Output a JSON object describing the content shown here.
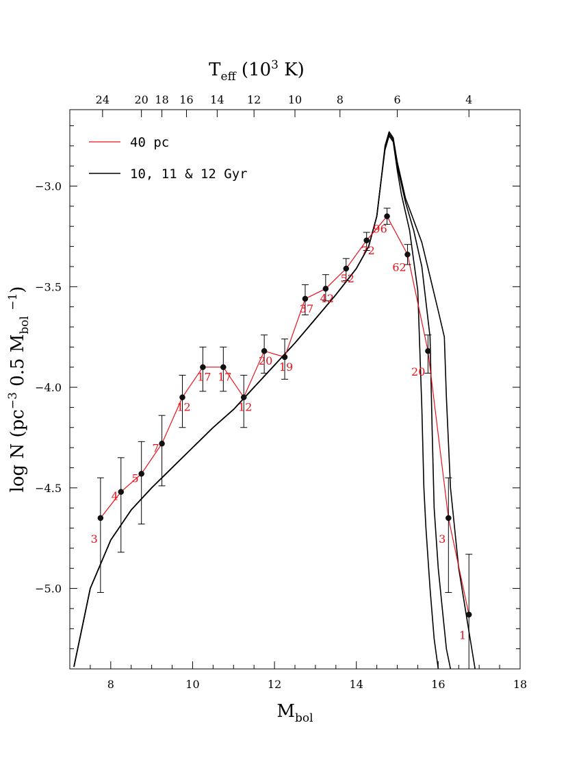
{
  "chart_data": {
    "type": "line",
    "xlabel": "M",
    "xlabel_sub": "bol",
    "ylabel_parts": [
      "log N (pc",
      "−3",
      " 0.5 M",
      "bol",
      " ",
      "−1",
      ")"
    ],
    "toplabel_parts": [
      "T",
      "eff",
      " (10",
      "3",
      " K)"
    ],
    "xlim": [
      7,
      18
    ],
    "ylim": [
      -5.4,
      -2.62
    ],
    "x_ticks": [
      8,
      10,
      12,
      14,
      16,
      18
    ],
    "x_tick_labels": [
      "8",
      "10",
      "12",
      "14",
      "16",
      "18"
    ],
    "y_ticks": [
      -5.0,
      -4.5,
      -4.0,
      -3.5,
      -3.0
    ],
    "y_tick_labels": [
      "−5.0",
      "−4.5",
      "−4.0",
      "−3.5",
      "−3.0"
    ],
    "top_ticks": [
      {
        "x": 7.8,
        "label": "24"
      },
      {
        "x": 8.75,
        "label": "20"
      },
      {
        "x": 9.25,
        "label": "18"
      },
      {
        "x": 9.85,
        "label": "16"
      },
      {
        "x": 10.6,
        "label": "14"
      },
      {
        "x": 11.5,
        "label": "12"
      },
      {
        "x": 12.5,
        "label": "10"
      },
      {
        "x": 13.6,
        "label": "8"
      },
      {
        "x": 15.0,
        "label": "6"
      },
      {
        "x": 16.75,
        "label": "4"
      }
    ],
    "legend": [
      {
        "label": "40 pc",
        "color": "#e8101a"
      },
      {
        "label": "10, 11 & 12 Gyr",
        "color": "#000000"
      }
    ],
    "series": [
      {
        "name": "40 pc",
        "color": "#e8101a",
        "points": [
          {
            "x": 7.75,
            "y": -4.65,
            "lo": -5.02,
            "hi": -4.45,
            "label": "3"
          },
          {
            "x": 8.25,
            "y": -4.52,
            "lo": -4.82,
            "hi": -4.35,
            "label": "4"
          },
          {
            "x": 8.75,
            "y": -4.43,
            "lo": -4.68,
            "hi": -4.27,
            "label": "5"
          },
          {
            "x": 9.25,
            "y": -4.28,
            "lo": -4.49,
            "hi": -4.14,
            "label": "7"
          },
          {
            "x": 9.75,
            "y": -4.05,
            "lo": -4.2,
            "hi": -3.94,
            "label": "12"
          },
          {
            "x": 10.25,
            "y": -3.9,
            "lo": -4.02,
            "hi": -3.8,
            "label": "17"
          },
          {
            "x": 10.75,
            "y": -3.9,
            "lo": -4.02,
            "hi": -3.8,
            "label": "17"
          },
          {
            "x": 11.25,
            "y": -4.05,
            "lo": -4.2,
            "hi": -3.94,
            "label": "12"
          },
          {
            "x": 11.75,
            "y": -3.82,
            "lo": -3.93,
            "hi": -3.74,
            "label": "20"
          },
          {
            "x": 12.25,
            "y": -3.85,
            "lo": -3.96,
            "hi": -3.76,
            "label": "19"
          },
          {
            "x": 12.75,
            "y": -3.56,
            "lo": -3.64,
            "hi": -3.49,
            "label": "37"
          },
          {
            "x": 13.25,
            "y": -3.51,
            "lo": -3.57,
            "hi": -3.44,
            "label": "42"
          },
          {
            "x": 13.75,
            "y": -3.41,
            "lo": -3.47,
            "hi": -3.36,
            "label": "52"
          },
          {
            "x": 14.25,
            "y": -3.27,
            "lo": -3.32,
            "hi": -3.23,
            "label": "72"
          },
          {
            "x": 14.75,
            "y": -3.15,
            "lo": -3.19,
            "hi": -3.11,
            "label": "96"
          },
          {
            "x": 15.25,
            "y": -3.34,
            "lo": -3.39,
            "hi": -3.29,
            "label": "62"
          },
          {
            "x": 15.75,
            "y": -3.82,
            "lo": -3.93,
            "hi": -3.74,
            "label": "20"
          },
          {
            "x": 16.25,
            "y": -4.65,
            "lo": -5.02,
            "hi": -4.45,
            "label": "3"
          },
          {
            "x": 16.75,
            "y": -5.13,
            "lo": -5.4,
            "hi": -4.83,
            "label": "1"
          }
        ]
      },
      {
        "name": "10 Gyr",
        "color": "#000000",
        "x": [
          7.1,
          7.5,
          8.0,
          8.5,
          9.0,
          9.5,
          10.0,
          10.5,
          11.0,
          11.5,
          12.0,
          12.5,
          13.0,
          13.5,
          14.0,
          14.3,
          14.5,
          14.6,
          14.7,
          14.8,
          14.9,
          15.0,
          15.1,
          15.3,
          15.5,
          15.6,
          15.65,
          15.7,
          15.8,
          15.9,
          16.0
        ],
        "y": [
          -5.39,
          -5.0,
          -4.76,
          -4.61,
          -4.5,
          -4.4,
          -4.3,
          -4.2,
          -4.11,
          -4.0,
          -3.89,
          -3.78,
          -3.66,
          -3.54,
          -3.41,
          -3.3,
          -3.15,
          -2.98,
          -2.82,
          -2.75,
          -2.78,
          -2.92,
          -3.04,
          -3.22,
          -3.52,
          -4.1,
          -4.5,
          -4.7,
          -5.0,
          -5.25,
          -5.4
        ]
      },
      {
        "name": "11 Gyr",
        "color": "#000000",
        "x": [
          7.1,
          7.5,
          8.0,
          8.5,
          9.0,
          9.5,
          10.0,
          10.5,
          11.0,
          11.5,
          12.0,
          12.5,
          13.0,
          13.5,
          14.0,
          14.3,
          14.5,
          14.6,
          14.7,
          14.8,
          14.9,
          15.0,
          15.2,
          15.4,
          15.6,
          15.8,
          15.85,
          15.9,
          16.0,
          16.1,
          16.2,
          16.3
        ],
        "y": [
          -5.39,
          -5.0,
          -4.76,
          -4.61,
          -4.5,
          -4.4,
          -4.3,
          -4.2,
          -4.11,
          -4.0,
          -3.89,
          -3.78,
          -3.66,
          -3.54,
          -3.41,
          -3.3,
          -3.15,
          -2.98,
          -2.81,
          -2.74,
          -2.77,
          -2.9,
          -3.08,
          -3.22,
          -3.4,
          -3.75,
          -4.2,
          -4.6,
          -4.9,
          -5.1,
          -5.3,
          -5.4
        ]
      },
      {
        "name": "12 Gyr",
        "color": "#000000",
        "x": [
          7.1,
          7.5,
          8.0,
          8.5,
          9.0,
          9.5,
          10.0,
          10.5,
          11.0,
          11.5,
          12.0,
          12.5,
          13.0,
          13.5,
          14.0,
          14.3,
          14.5,
          14.6,
          14.7,
          14.8,
          14.9,
          15.0,
          15.2,
          15.4,
          15.6,
          15.8,
          16.0,
          16.15,
          16.2,
          16.3,
          16.5,
          16.7,
          16.9
        ],
        "y": [
          -5.39,
          -5.0,
          -4.76,
          -4.61,
          -4.5,
          -4.4,
          -4.3,
          -4.2,
          -4.11,
          -4.0,
          -3.89,
          -3.78,
          -3.66,
          -3.54,
          -3.41,
          -3.3,
          -3.15,
          -2.98,
          -2.8,
          -2.73,
          -2.76,
          -2.88,
          -3.06,
          -3.17,
          -3.28,
          -3.45,
          -3.62,
          -3.75,
          -4.05,
          -4.5,
          -4.9,
          -5.15,
          -5.4
        ]
      }
    ]
  }
}
